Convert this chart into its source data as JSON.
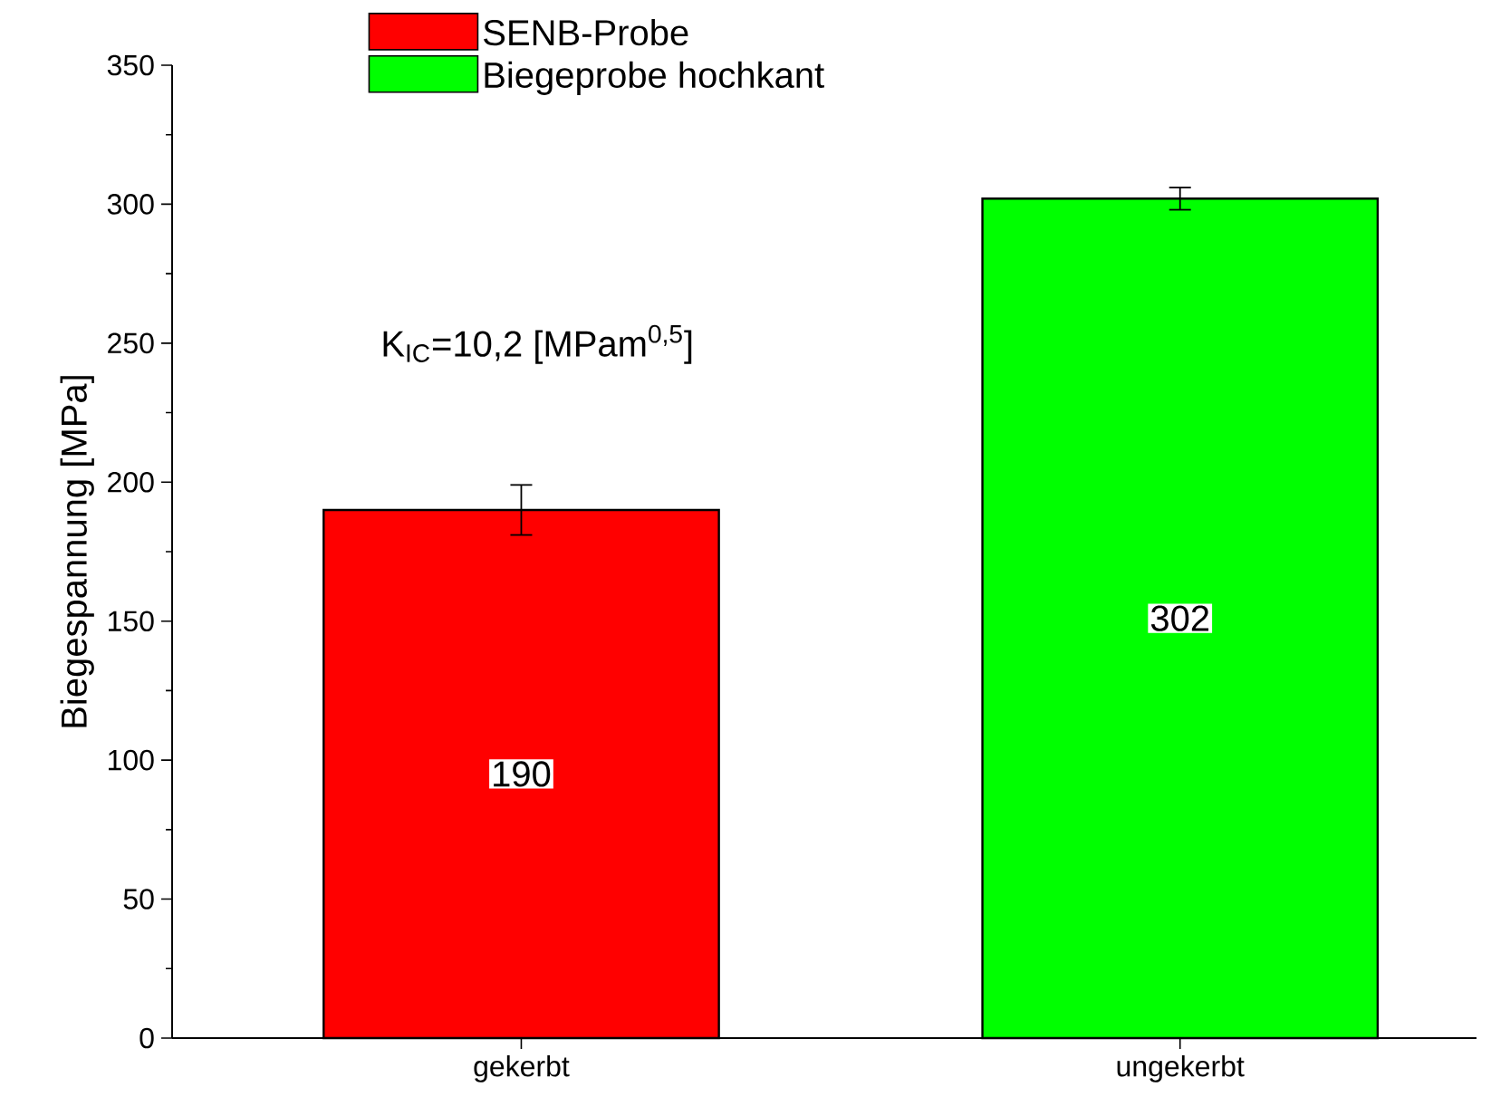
{
  "chart_data": {
    "type": "bar",
    "ylabel": "Biegespannung [MPa]",
    "categories": [
      "gekerbt",
      "ungekerbt"
    ],
    "series": [
      {
        "name": "SENB-Probe",
        "color": "#ff0000",
        "values": [
          190,
          null
        ],
        "errors": [
          9,
          null
        ]
      },
      {
        "name": "Biegeprobe hochkant",
        "color": "#00ff00",
        "values": [
          null,
          302
        ],
        "errors": [
          null,
          4
        ]
      }
    ],
    "ylim": [
      0,
      350
    ],
    "yticks": [
      0,
      50,
      100,
      150,
      200,
      250,
      300,
      350
    ],
    "data_labels": true,
    "legend": "top",
    "grid": false,
    "annotations": [
      "K$_{IC}$=10,2 [MPam$^{0,5}$]"
    ]
  }
}
